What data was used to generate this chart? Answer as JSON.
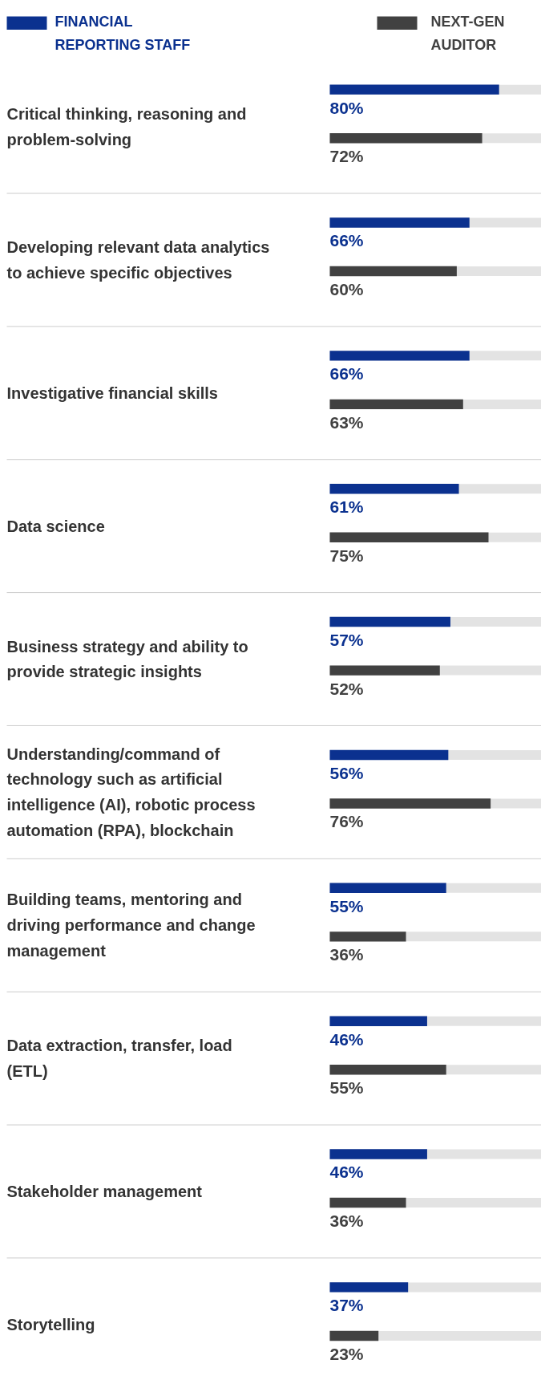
{
  "chart_data": {
    "type": "bar",
    "orientation": "horizontal",
    "legend": "top",
    "grid": false,
    "xlim": [
      0,
      100
    ],
    "categories": [
      "Critical thinking, reasoning and problem-solving",
      "Developing relevant data analytics to achieve specific objectives",
      "Investigative financial skills",
      "Data science",
      "Business strategy and ability to provide strategic insights",
      "Understanding/command of technology such as artificial intelligence (AI), robotic process automation (RPA), blockchain",
      "Building teams, mentoring and driving performance and change management",
      "Data extraction, transfer, load (ETL)",
      "Stakeholder management",
      "Storytelling"
    ],
    "series": [
      {
        "name": "FINANCIAL REPORTING STAFF",
        "color": "#0b318f",
        "values": [
          80,
          66,
          66,
          61,
          57,
          56,
          55,
          46,
          46,
          37
        ],
        "value_labels": [
          "80%",
          "66%",
          "66%",
          "61%",
          "57%",
          "56%",
          "55%",
          "46%",
          "46%",
          "37%"
        ]
      },
      {
        "name": "NEXT-GEN AUDITOR",
        "color": "#414141",
        "values": [
          72,
          60,
          63,
          75,
          52,
          76,
          36,
          55,
          36,
          23
        ],
        "value_labels": [
          "72%",
          "60%",
          "63%",
          "75%",
          "52%",
          "76%",
          "36%",
          "55%",
          "36%",
          "23%"
        ]
      }
    ]
  }
}
